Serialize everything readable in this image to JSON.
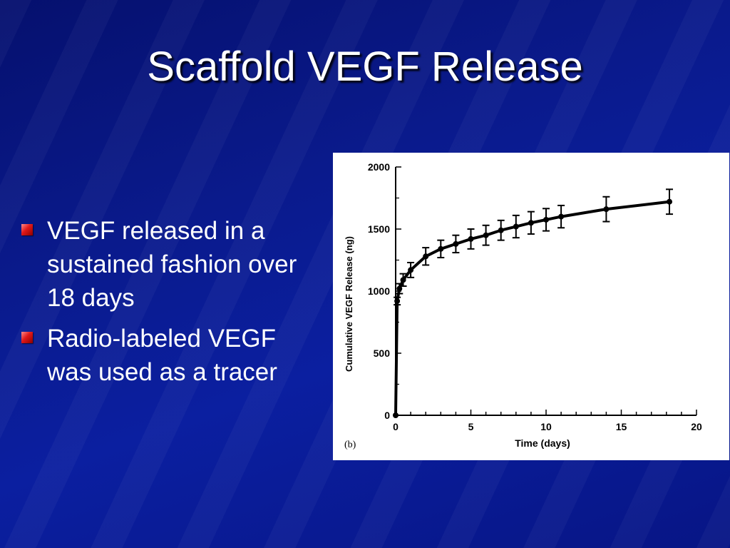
{
  "slide": {
    "title": "Scaffold VEGF Release",
    "bullets": [
      {
        "text": "VEGF released in a sustained fashion over 18 days"
      },
      {
        "text": "Radio-labeled VEGF was used as a tracer"
      }
    ],
    "colors": {
      "background": "#0a1a8c",
      "title": "#ffffff",
      "bullet": "#e01818"
    }
  },
  "chart_data": {
    "type": "line",
    "panel_label": "(b)",
    "xlabel": "Time (days)",
    "ylabel": "Cumulative VEGF Release (ng)",
    "xlim": [
      0,
      20
    ],
    "ylim": [
      0,
      2000
    ],
    "x_ticks": [
      0,
      5,
      10,
      15,
      20
    ],
    "y_ticks": [
      0,
      500,
      1000,
      1500,
      2000
    ],
    "grid": false,
    "series": [
      {
        "x": [
          0,
          0.1,
          0.25,
          0.5,
          1,
          2,
          3,
          4,
          5,
          6,
          7,
          8,
          9,
          10,
          11,
          14,
          18.2
        ],
        "y": [
          0,
          920,
          1020,
          1090,
          1170,
          1280,
          1340,
          1380,
          1420,
          1450,
          1490,
          1520,
          1550,
          1575,
          1600,
          1660,
          1720
        ],
        "error": [
          0,
          30,
          40,
          50,
          60,
          70,
          70,
          70,
          80,
          80,
          80,
          90,
          90,
          90,
          90,
          100,
          100
        ]
      }
    ]
  }
}
